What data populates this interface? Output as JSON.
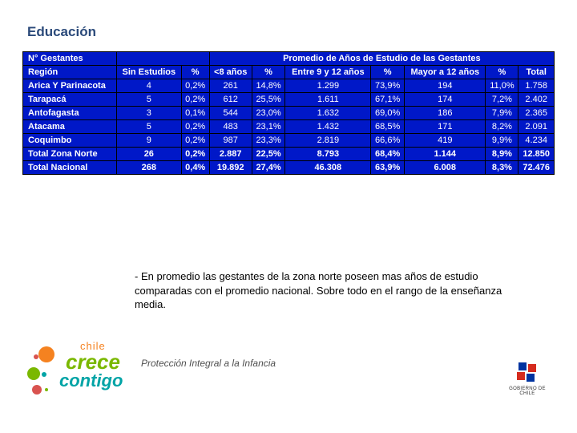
{
  "title": "Educación",
  "table": {
    "header_top_left": "N° Gestantes",
    "header_sub_left": "Región",
    "header_promedio": "Promedio de Años de Estudio de las Gestantes",
    "cols": [
      "Sin Estudios",
      "%",
      "<8 años",
      "%",
      "Entre 9 y 12 años",
      "%",
      "Mayor a 12 años",
      "%",
      "Total"
    ],
    "rows": [
      {
        "region": "Arica Y Parinacota",
        "cells": [
          "4",
          "0,2%",
          "261",
          "14,8%",
          "1.299",
          "73,9%",
          "194",
          "11,0%",
          "1.758"
        ]
      },
      {
        "region": "Tarapacá",
        "cells": [
          "5",
          "0,2%",
          "612",
          "25,5%",
          "1.611",
          "67,1%",
          "174",
          "7,2%",
          "2.402"
        ]
      },
      {
        "region": "Antofagasta",
        "cells": [
          "3",
          "0,1%",
          "544",
          "23,0%",
          "1.632",
          "69,0%",
          "186",
          "7,9%",
          "2.365"
        ]
      },
      {
        "region": "Atacama",
        "cells": [
          "5",
          "0,2%",
          "483",
          "23,1%",
          "1.432",
          "68,5%",
          "171",
          "8,2%",
          "2.091"
        ]
      },
      {
        "region": "Coquimbo",
        "cells": [
          "9",
          "0,2%",
          "987",
          "23,3%",
          "2.819",
          "66,6%",
          "419",
          "9,9%",
          "4.234"
        ]
      }
    ],
    "totals": [
      {
        "region": "Total Zona Norte",
        "cells": [
          "26",
          "0,2%",
          "2.887",
          "22,5%",
          "8.793",
          "68,4%",
          "1.144",
          "8,9%",
          "12.850"
        ]
      },
      {
        "region": "Total Nacional",
        "cells": [
          "268",
          "0,4%",
          "19.892",
          "27,4%",
          "46.308",
          "63,9%",
          "6.008",
          "8,3%",
          "72.476"
        ]
      }
    ],
    "bg_color": "#0018c8",
    "text_color": "#ffffff",
    "border_color": "#000000"
  },
  "footnote": "- En promedio las gestantes de la zona norte poseen mas años de estudio comparadas con el promedio nacional. Sobre todo en el rango de la enseñanza media.",
  "subtitle": "Protección Integral a la Infancia",
  "logo_left": {
    "chile": "chile",
    "crece": "crece",
    "contigo": "contigo",
    "colors": {
      "chile": "#f58220",
      "crece": "#7ab800",
      "contigo": "#00a4a6",
      "dot_orange": "#f58220",
      "dot_green": "#7ab800",
      "dot_red": "#d9534f",
      "dot_teal": "#00a4a6"
    }
  },
  "logo_right": {
    "label": "GOBIERNO DE CHILE",
    "colors": {
      "blue": "#0033a0",
      "red": "#d52b1e",
      "white": "#ffffff"
    }
  }
}
